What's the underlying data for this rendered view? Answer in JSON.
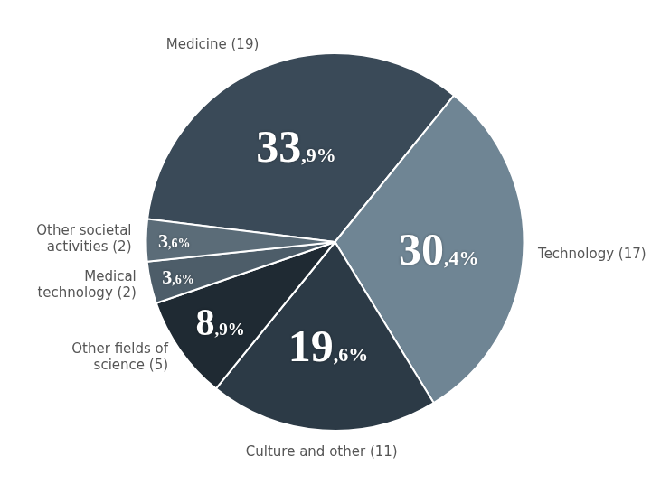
{
  "chart_data": {
    "type": "pie",
    "categories": [
      "Medicine (19)",
      "Technology (17)",
      "Culture and other (11)",
      "Other fields of science (5)",
      "Medical technology (2)",
      "Other societal activities (2)"
    ],
    "values": [
      33.9,
      30.4,
      19.6,
      8.9,
      3.6,
      3.6
    ],
    "value_labels": [
      "33,9%",
      "30,4%",
      "19,6%",
      "8,9%",
      "3,6%",
      "3,6%"
    ],
    "data_labels": true,
    "colors": [
      "#3a4a58",
      "#6f8594",
      "#2c3a46",
      "#1f2a33",
      "#4d5d69",
      "#5b6c78"
    ]
  }
}
